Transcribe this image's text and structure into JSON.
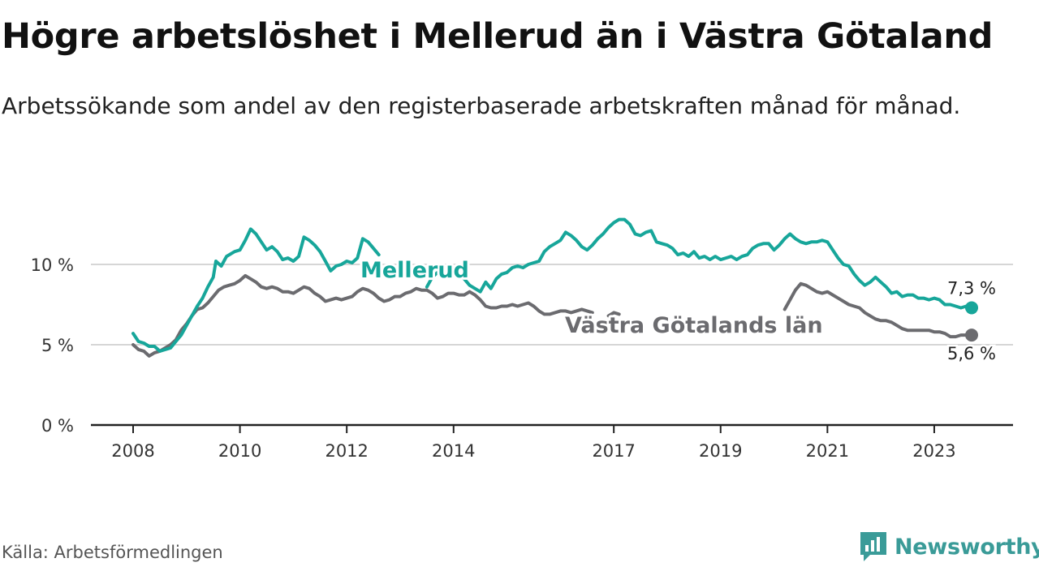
{
  "title": "Högre arbetslöshet i Mellerud än i Västra Götaland",
  "subtitle": "Arbetssökande som andel av den registerbaserade arbetskraften månad för månad.",
  "source": "Källa: Arbetsförmedlingen",
  "brand": "Newsworthy",
  "colors": {
    "mellerud": "#17a69a",
    "vg": "#6b6b6f",
    "grid": "#d6d6d6",
    "axis": "#222222",
    "brand": "#3a9b98"
  },
  "chart_data": {
    "type": "line",
    "title": "Högre arbetslöshet i Mellerud än i Västra Götaland",
    "xlabel": "",
    "ylabel": "",
    "ylim": [
      0,
      13.2
    ],
    "xlim": [
      2008.0,
      2024.4
    ],
    "grid": true,
    "y_ticks": [
      {
        "value": 0,
        "label": "0 %"
      },
      {
        "value": 5,
        "label": "5 %"
      },
      {
        "value": 10,
        "label": "10 %"
      }
    ],
    "x_ticks": [
      {
        "value": 2008,
        "label": "2008"
      },
      {
        "value": 2010,
        "label": "2010"
      },
      {
        "value": 2012,
        "label": "2012"
      },
      {
        "value": 2014,
        "label": "2014"
      },
      {
        "value": 2017,
        "label": "2017"
      },
      {
        "value": 2019,
        "label": "2019"
      },
      {
        "value": 2021,
        "label": "2021"
      },
      {
        "value": 2023,
        "label": "2023"
      }
    ],
    "series": [
      {
        "name": "Mellerud",
        "end_label": "7,3 %",
        "points": [
          [
            2008.0,
            5.7
          ],
          [
            2008.1,
            5.2
          ],
          [
            2008.2,
            5.1
          ],
          [
            2008.3,
            4.9
          ],
          [
            2008.4,
            4.9
          ],
          [
            2008.5,
            4.6
          ],
          [
            2008.6,
            4.7
          ],
          [
            2008.7,
            4.8
          ],
          [
            2008.8,
            5.2
          ],
          [
            2008.9,
            5.6
          ],
          [
            2009.0,
            6.2
          ],
          [
            2009.1,
            6.8
          ],
          [
            2009.2,
            7.4
          ],
          [
            2009.3,
            7.9
          ],
          [
            2009.4,
            8.6
          ],
          [
            2009.5,
            9.2
          ],
          [
            2009.55,
            10.2
          ],
          [
            2009.65,
            9.9
          ],
          [
            2009.75,
            10.5
          ],
          [
            2009.9,
            10.8
          ],
          [
            2010.0,
            10.9
          ],
          [
            2010.1,
            11.5
          ],
          [
            2010.2,
            12.2
          ],
          [
            2010.3,
            11.9
          ],
          [
            2010.4,
            11.4
          ],
          [
            2010.5,
            10.9
          ],
          [
            2010.6,
            11.1
          ],
          [
            2010.7,
            10.8
          ],
          [
            2010.8,
            10.3
          ],
          [
            2010.9,
            10.4
          ],
          [
            2011.0,
            10.2
          ],
          [
            2011.1,
            10.5
          ],
          [
            2011.2,
            11.7
          ],
          [
            2011.3,
            11.5
          ],
          [
            2011.4,
            11.2
          ],
          [
            2011.5,
            10.8
          ],
          [
            2011.6,
            10.2
          ],
          [
            2011.7,
            9.6
          ],
          [
            2011.8,
            9.9
          ],
          [
            2011.9,
            10.0
          ],
          [
            2012.0,
            10.2
          ],
          [
            2012.1,
            10.1
          ],
          [
            2012.2,
            10.4
          ],
          [
            2012.3,
            11.6
          ],
          [
            2012.4,
            11.4
          ],
          [
            2012.5,
            11.0
          ],
          [
            2012.6,
            10.6
          ],
          [
            2013.5,
            8.6
          ],
          [
            2013.6,
            9.2
          ],
          [
            2013.7,
            9.5
          ],
          [
            2013.8,
            9.6
          ],
          [
            2013.9,
            9.2
          ],
          [
            2014.0,
            9.5
          ],
          [
            2014.2,
            9.1
          ],
          [
            2014.3,
            8.7
          ],
          [
            2014.4,
            8.5
          ],
          [
            2014.5,
            8.3
          ],
          [
            2014.6,
            8.9
          ],
          [
            2014.7,
            8.5
          ],
          [
            2014.8,
            9.1
          ],
          [
            2014.9,
            9.4
          ],
          [
            2015.0,
            9.5
          ],
          [
            2015.1,
            9.8
          ],
          [
            2015.2,
            9.9
          ],
          [
            2015.3,
            9.8
          ],
          [
            2015.4,
            10.0
          ],
          [
            2015.5,
            10.1
          ],
          [
            2015.6,
            10.2
          ],
          [
            2015.7,
            10.8
          ],
          [
            2015.8,
            11.1
          ],
          [
            2015.9,
            11.3
          ],
          [
            2016.0,
            11.5
          ],
          [
            2016.1,
            12.0
          ],
          [
            2016.2,
            11.8
          ],
          [
            2016.3,
            11.5
          ],
          [
            2016.4,
            11.1
          ],
          [
            2016.5,
            10.9
          ],
          [
            2016.6,
            11.2
          ],
          [
            2016.7,
            11.6
          ],
          [
            2016.8,
            11.9
          ],
          [
            2016.9,
            12.3
          ],
          [
            2017.0,
            12.6
          ],
          [
            2017.1,
            12.8
          ],
          [
            2017.2,
            12.8
          ],
          [
            2017.3,
            12.5
          ],
          [
            2017.4,
            11.9
          ],
          [
            2017.5,
            11.8
          ],
          [
            2017.6,
            12.0
          ],
          [
            2017.7,
            12.1
          ],
          [
            2017.8,
            11.4
          ],
          [
            2017.9,
            11.3
          ],
          [
            2018.0,
            11.2
          ],
          [
            2018.1,
            11.0
          ],
          [
            2018.2,
            10.6
          ],
          [
            2018.3,
            10.7
          ],
          [
            2018.4,
            10.5
          ],
          [
            2018.5,
            10.8
          ],
          [
            2018.6,
            10.4
          ],
          [
            2018.7,
            10.5
          ],
          [
            2018.8,
            10.3
          ],
          [
            2018.9,
            10.5
          ],
          [
            2019.0,
            10.3
          ],
          [
            2019.1,
            10.4
          ],
          [
            2019.2,
            10.5
          ],
          [
            2019.3,
            10.3
          ],
          [
            2019.4,
            10.5
          ],
          [
            2019.5,
            10.6
          ],
          [
            2019.6,
            11.0
          ],
          [
            2019.7,
            11.2
          ],
          [
            2019.8,
            11.3
          ],
          [
            2019.9,
            11.3
          ],
          [
            2020.0,
            10.9
          ],
          [
            2020.1,
            11.2
          ],
          [
            2020.2,
            11.6
          ],
          [
            2020.3,
            11.9
          ],
          [
            2020.4,
            11.6
          ],
          [
            2020.5,
            11.4
          ],
          [
            2020.6,
            11.3
          ],
          [
            2020.7,
            11.4
          ],
          [
            2020.8,
            11.4
          ],
          [
            2020.9,
            11.5
          ],
          [
            2021.0,
            11.4
          ],
          [
            2021.1,
            10.9
          ],
          [
            2021.2,
            10.4
          ],
          [
            2021.3,
            10.0
          ],
          [
            2021.4,
            9.9
          ],
          [
            2021.5,
            9.4
          ],
          [
            2021.6,
            9.0
          ],
          [
            2021.7,
            8.7
          ],
          [
            2021.8,
            8.9
          ],
          [
            2021.9,
            9.2
          ],
          [
            2022.0,
            8.9
          ],
          [
            2022.1,
            8.6
          ],
          [
            2022.2,
            8.2
          ],
          [
            2022.3,
            8.3
          ],
          [
            2022.4,
            8.0
          ],
          [
            2022.5,
            8.1
          ],
          [
            2022.6,
            8.1
          ],
          [
            2022.7,
            7.9
          ],
          [
            2022.8,
            7.9
          ],
          [
            2022.9,
            7.8
          ],
          [
            2023.0,
            7.9
          ],
          [
            2023.1,
            7.8
          ],
          [
            2023.2,
            7.5
          ],
          [
            2023.3,
            7.5
          ],
          [
            2023.4,
            7.4
          ],
          [
            2023.5,
            7.3
          ],
          [
            2023.6,
            7.4
          ],
          [
            2023.7,
            7.3
          ]
        ]
      },
      {
        "name": "Västra Götalands län",
        "end_label": "5,6 %",
        "points": [
          [
            2008.0,
            5.0
          ],
          [
            2008.1,
            4.7
          ],
          [
            2008.2,
            4.6
          ],
          [
            2008.3,
            4.3
          ],
          [
            2008.4,
            4.5
          ],
          [
            2008.5,
            4.6
          ],
          [
            2008.6,
            4.8
          ],
          [
            2008.7,
            5.0
          ],
          [
            2008.8,
            5.3
          ],
          [
            2008.9,
            5.9
          ],
          [
            2009.0,
            6.3
          ],
          [
            2009.1,
            6.8
          ],
          [
            2009.2,
            7.2
          ],
          [
            2009.3,
            7.3
          ],
          [
            2009.4,
            7.6
          ],
          [
            2009.5,
            8.0
          ],
          [
            2009.6,
            8.4
          ],
          [
            2009.7,
            8.6
          ],
          [
            2009.8,
            8.7
          ],
          [
            2009.9,
            8.8
          ],
          [
            2010.0,
            9.0
          ],
          [
            2010.1,
            9.3
          ],
          [
            2010.2,
            9.1
          ],
          [
            2010.3,
            8.9
          ],
          [
            2010.4,
            8.6
          ],
          [
            2010.5,
            8.5
          ],
          [
            2010.6,
            8.6
          ],
          [
            2010.7,
            8.5
          ],
          [
            2010.8,
            8.3
          ],
          [
            2010.9,
            8.3
          ],
          [
            2011.0,
            8.2
          ],
          [
            2011.1,
            8.4
          ],
          [
            2011.2,
            8.6
          ],
          [
            2011.3,
            8.5
          ],
          [
            2011.4,
            8.2
          ],
          [
            2011.5,
            8.0
          ],
          [
            2011.6,
            7.7
          ],
          [
            2011.7,
            7.8
          ],
          [
            2011.8,
            7.9
          ],
          [
            2011.9,
            7.8
          ],
          [
            2012.0,
            7.9
          ],
          [
            2012.1,
            8.0
          ],
          [
            2012.2,
            8.3
          ],
          [
            2012.3,
            8.5
          ],
          [
            2012.4,
            8.4
          ],
          [
            2012.5,
            8.2
          ],
          [
            2012.6,
            7.9
          ],
          [
            2012.7,
            7.7
          ],
          [
            2012.8,
            7.8
          ],
          [
            2012.9,
            8.0
          ],
          [
            2013.0,
            8.0
          ],
          [
            2013.1,
            8.2
          ],
          [
            2013.2,
            8.3
          ],
          [
            2013.3,
            8.5
          ],
          [
            2013.4,
            8.4
          ],
          [
            2013.5,
            8.4
          ],
          [
            2013.6,
            8.2
          ],
          [
            2013.7,
            7.9
          ],
          [
            2013.8,
            8.0
          ],
          [
            2013.9,
            8.2
          ],
          [
            2014.0,
            8.2
          ],
          [
            2014.1,
            8.1
          ],
          [
            2014.2,
            8.1
          ],
          [
            2014.3,
            8.3
          ],
          [
            2014.4,
            8.1
          ],
          [
            2014.5,
            7.8
          ],
          [
            2014.6,
            7.4
          ],
          [
            2014.7,
            7.3
          ],
          [
            2014.8,
            7.3
          ],
          [
            2014.9,
            7.4
          ],
          [
            2015.0,
            7.4
          ],
          [
            2015.1,
            7.5
          ],
          [
            2015.2,
            7.4
          ],
          [
            2015.3,
            7.5
          ],
          [
            2015.4,
            7.6
          ],
          [
            2015.5,
            7.4
          ],
          [
            2015.6,
            7.1
          ],
          [
            2015.7,
            6.9
          ],
          [
            2015.8,
            6.9
          ],
          [
            2015.9,
            7.0
          ],
          [
            2016.0,
            7.1
          ],
          [
            2016.1,
            7.1
          ],
          [
            2016.2,
            7.0
          ],
          [
            2016.3,
            7.1
          ],
          [
            2016.4,
            7.2
          ],
          [
            2016.5,
            7.1
          ],
          [
            2016.6,
            7.0
          ],
          [
            2016.9,
            6.8
          ],
          [
            2017.0,
            7.0
          ],
          [
            2017.1,
            6.9
          ],
          [
            2020.2,
            7.2
          ],
          [
            2020.3,
            7.8
          ],
          [
            2020.4,
            8.4
          ],
          [
            2020.5,
            8.8
          ],
          [
            2020.6,
            8.7
          ],
          [
            2020.7,
            8.5
          ],
          [
            2020.8,
            8.3
          ],
          [
            2020.9,
            8.2
          ],
          [
            2021.0,
            8.3
          ],
          [
            2021.1,
            8.1
          ],
          [
            2021.2,
            7.9
          ],
          [
            2021.3,
            7.7
          ],
          [
            2021.4,
            7.5
          ],
          [
            2021.5,
            7.4
          ],
          [
            2021.6,
            7.3
          ],
          [
            2021.7,
            7.0
          ],
          [
            2021.8,
            6.8
          ],
          [
            2021.9,
            6.6
          ],
          [
            2022.0,
            6.5
          ],
          [
            2022.1,
            6.5
          ],
          [
            2022.2,
            6.4
          ],
          [
            2022.3,
            6.2
          ],
          [
            2022.4,
            6.0
          ],
          [
            2022.5,
            5.9
          ],
          [
            2022.6,
            5.9
          ],
          [
            2022.7,
            5.9
          ],
          [
            2022.8,
            5.9
          ],
          [
            2022.9,
            5.9
          ],
          [
            2023.0,
            5.8
          ],
          [
            2023.1,
            5.8
          ],
          [
            2023.2,
            5.7
          ],
          [
            2023.3,
            5.5
          ],
          [
            2023.4,
            5.5
          ],
          [
            2023.5,
            5.6
          ],
          [
            2023.6,
            5.6
          ],
          [
            2023.7,
            5.6
          ]
        ]
      }
    ]
  }
}
